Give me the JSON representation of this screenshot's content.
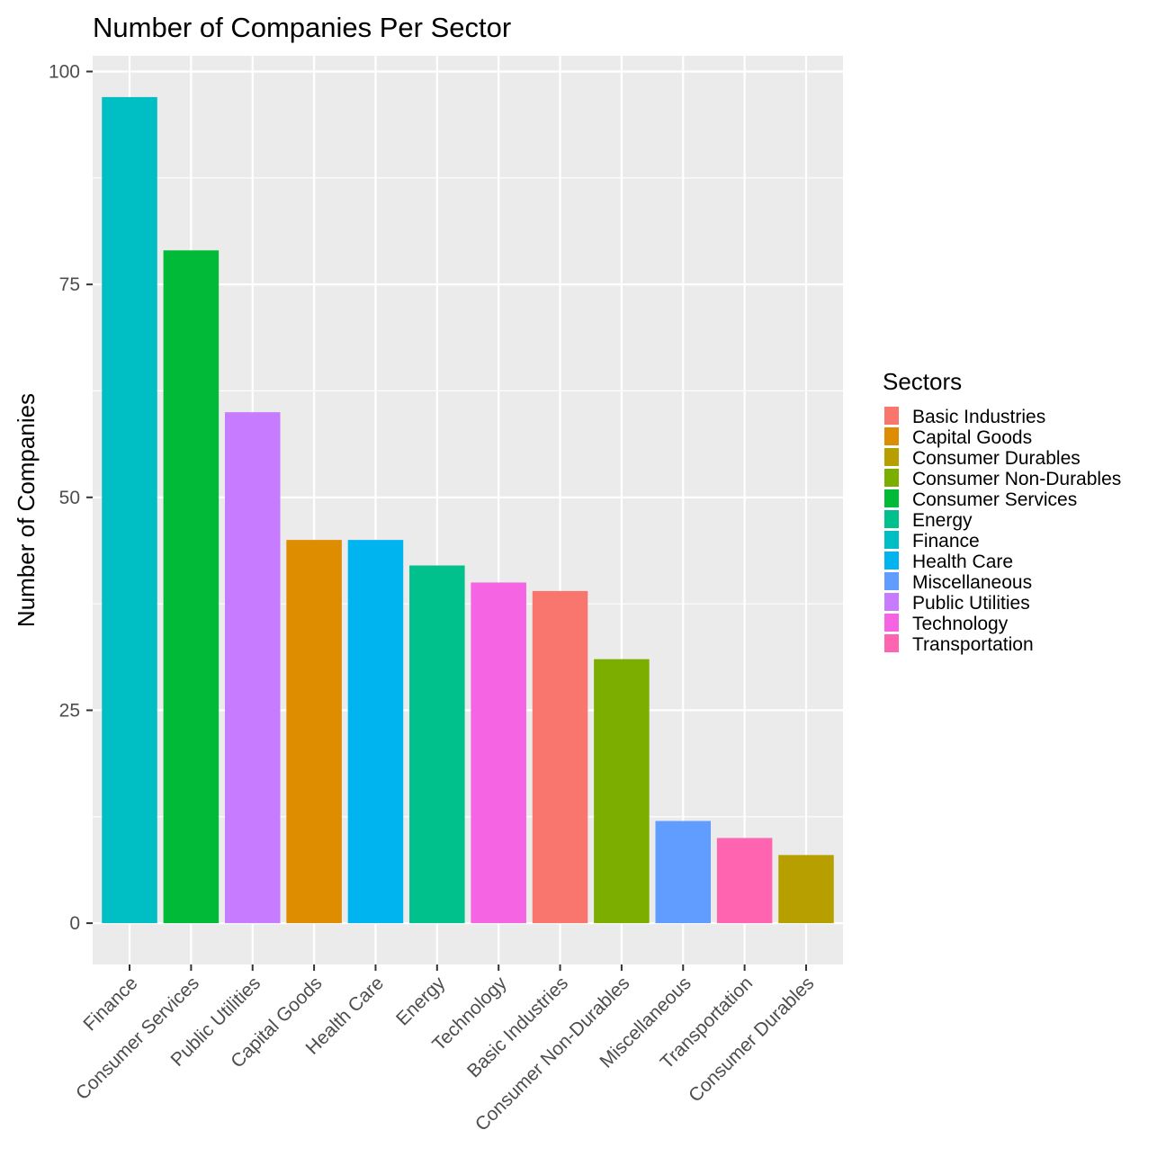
{
  "chart_data": {
    "type": "bar",
    "title": "Number of Companies Per Sector",
    "xlabel": "",
    "ylabel": "Number of Companies",
    "ylim": [
      -4.85,
      101.85
    ],
    "y_ticks": [
      0,
      25,
      50,
      75,
      100
    ],
    "y_tick_labels": [
      "0",
      "25",
      "50",
      "75",
      "100"
    ],
    "grid": true,
    "categories": [
      "Finance",
      "Consumer Services",
      "Public Utilities",
      "Capital Goods",
      "Health Care",
      "Energy",
      "Technology",
      "Basic Industries",
      "Consumer Non-Durables",
      "Miscellaneous",
      "Transportation",
      "Consumer Durables"
    ],
    "values": [
      97,
      79,
      60,
      45,
      45,
      42,
      40,
      39,
      31,
      12,
      10,
      8
    ],
    "bar_colors": [
      "#00BFC4",
      "#00BA38",
      "#C77CFF",
      "#DE8C00",
      "#00B4F0",
      "#00C08B",
      "#F564E3",
      "#F8766D",
      "#7CAE00",
      "#619CFF",
      "#FF64B0",
      "#B79F00"
    ],
    "legend": {
      "title": "Sectors",
      "position": "right",
      "entries": [
        {
          "label": "Basic Industries",
          "color": "#F8766D"
        },
        {
          "label": "Capital Goods",
          "color": "#DE8C00"
        },
        {
          "label": "Consumer Durables",
          "color": "#B79F00"
        },
        {
          "label": "Consumer Non-Durables",
          "color": "#7CAE00"
        },
        {
          "label": "Consumer Services",
          "color": "#00BA38"
        },
        {
          "label": "Energy",
          "color": "#00C08B"
        },
        {
          "label": "Finance",
          "color": "#00BFC4"
        },
        {
          "label": "Health Care",
          "color": "#00B4F0"
        },
        {
          "label": "Miscellaneous",
          "color": "#619CFF"
        },
        {
          "label": "Public Utilities",
          "color": "#C77CFF"
        },
        {
          "label": "Technology",
          "color": "#F564E3"
        },
        {
          "label": "Transportation",
          "color": "#FF64B0"
        }
      ]
    }
  }
}
